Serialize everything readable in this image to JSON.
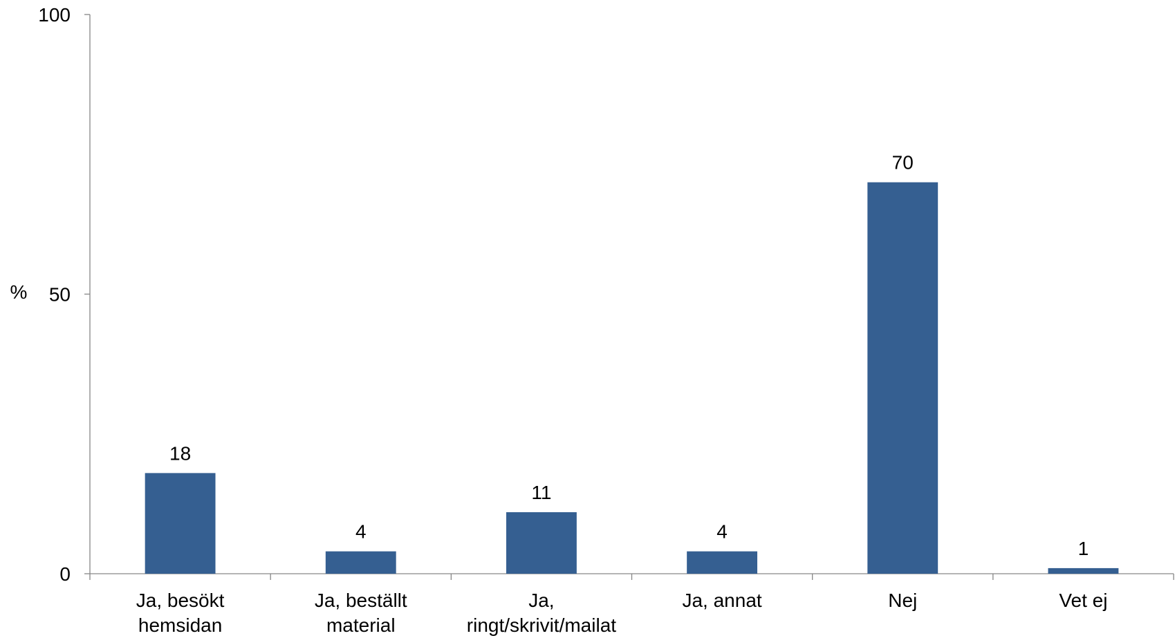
{
  "chart_data": {
    "type": "bar",
    "title": "",
    "xlabel": "",
    "ylabel": "%",
    "ylim": [
      0,
      100
    ],
    "yticks": [
      0,
      50,
      100
    ],
    "grid": false,
    "legend": "none",
    "bar_color": "#355F91",
    "axis_color": "#868686",
    "categories": [
      [
        "Ja, besökt",
        "hemsidan"
      ],
      [
        "Ja, beställt",
        "material"
      ],
      [
        "Ja,",
        "ringt/skrivit/mailat"
      ],
      [
        "Ja, annat"
      ],
      [
        "Nej"
      ],
      [
        "Vet ej"
      ]
    ],
    "values": [
      18,
      4,
      11,
      4,
      70,
      1
    ],
    "data_labels": [
      "18",
      "4",
      "11",
      "4",
      "70",
      "1"
    ]
  }
}
